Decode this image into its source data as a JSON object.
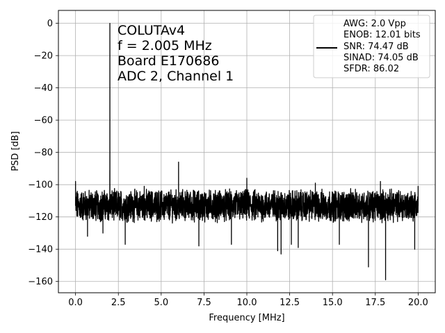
{
  "chart_data": {
    "type": "line",
    "xlabel": "Frequency [MHz]",
    "ylabel": "PSD [dB]",
    "xlim": [
      -1.0,
      21.0
    ],
    "ylim": [
      -167,
      8
    ],
    "xticks": [
      0.0,
      2.5,
      5.0,
      7.5,
      10.0,
      12.5,
      15.0,
      17.5,
      20.0
    ],
    "xtick_labels": [
      "0.0",
      "2.5",
      "5.0",
      "7.5",
      "10.0",
      "12.5",
      "15.0",
      "17.5",
      "20.0"
    ],
    "yticks": [
      0,
      -20,
      -40,
      -60,
      -80,
      -100,
      -120,
      -140,
      -160
    ],
    "ytick_labels": [
      "0",
      "−20",
      "−40",
      "−60",
      "−80",
      "−100",
      "−120",
      "−140",
      "−160"
    ],
    "grid": true,
    "line_color": "#000000",
    "annotation": [
      "COLUTAv4",
      "f = 2.005 MHz",
      "Board E170686",
      "ADC 2, Channel 1"
    ],
    "legend": {
      "placement": "upper right",
      "entries": [
        "AWG: 2.0 Vpp",
        "ENOB: 12.01 bits",
        "SNR: 74.47 dB",
        "SINAD: 74.05 dB",
        "SFDR: 86.02"
      ]
    },
    "noise_floor": {
      "x_range": [
        0.0,
        20.0
      ],
      "level_db": -113,
      "typical_swing_db": 8
    },
    "spurs": [
      {
        "x": 0.0,
        "y": -98
      },
      {
        "x": 2.005,
        "y": 0
      },
      {
        "x": 2.0,
        "y": -91
      },
      {
        "x": 4.01,
        "y": -101
      },
      {
        "x": 6.015,
        "y": -86
      },
      {
        "x": 10.0,
        "y": -96
      },
      {
        "x": 14.0,
        "y": -99
      },
      {
        "x": 17.8,
        "y": -98
      },
      {
        "x": 20.0,
        "y": -101
      }
    ],
    "dips": [
      {
        "x": 0.7,
        "y": -132
      },
      {
        "x": 1.6,
        "y": -130
      },
      {
        "x": 2.9,
        "y": -137
      },
      {
        "x": 7.2,
        "y": -138
      },
      {
        "x": 9.1,
        "y": -137
      },
      {
        "x": 11.8,
        "y": -141
      },
      {
        "x": 12.0,
        "y": -143
      },
      {
        "x": 12.6,
        "y": -137
      },
      {
        "x": 13.0,
        "y": -139
      },
      {
        "x": 15.4,
        "y": -137
      },
      {
        "x": 17.1,
        "y": -151
      },
      {
        "x": 18.1,
        "y": -159
      },
      {
        "x": 19.8,
        "y": -140
      }
    ]
  }
}
